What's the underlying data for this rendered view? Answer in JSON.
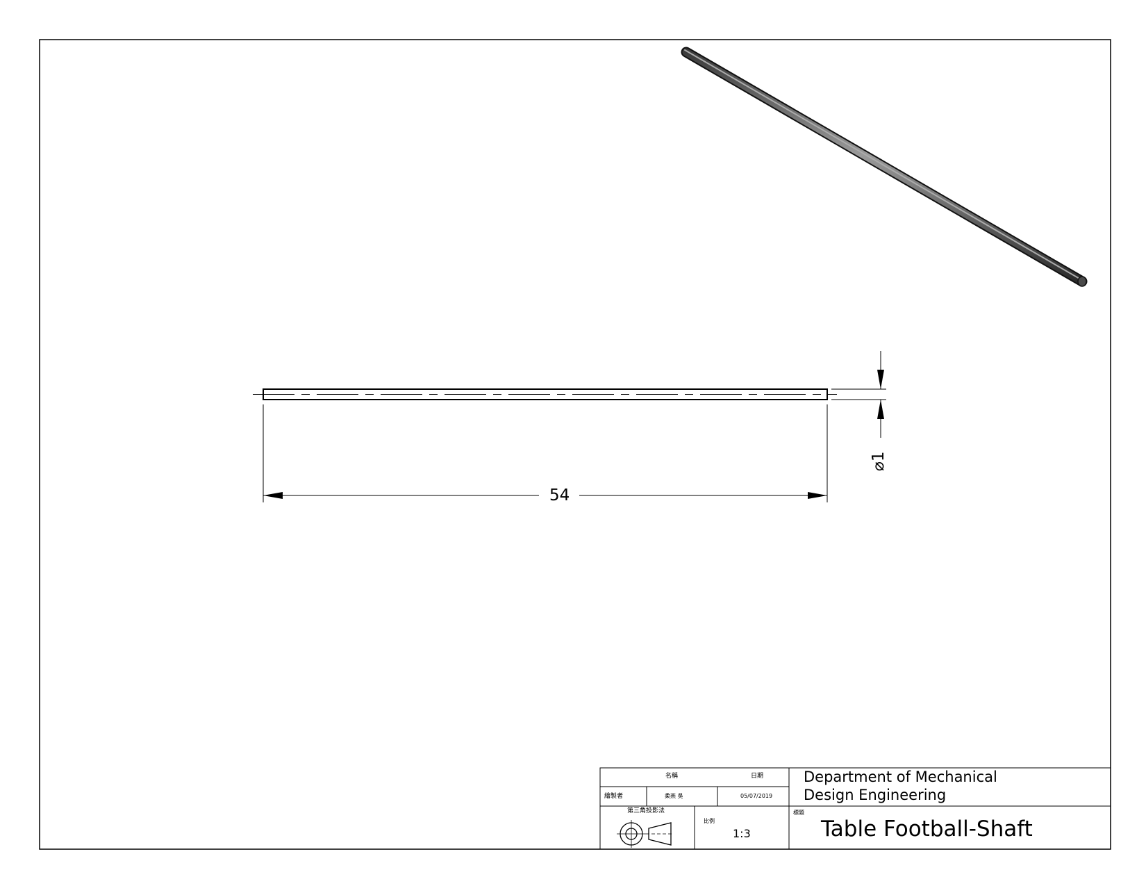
{
  "drawing": {
    "length_dimension": "54",
    "diameter_dimension": "⌀1"
  },
  "title_block": {
    "header_name": "名稱",
    "header_date": "日期",
    "drawn_by_label": "繪製者",
    "drawn_by_name": "柔燕 吳",
    "drawn_date": "05/07/2019",
    "projection_label": "第三角投影法",
    "scale_label": "比例",
    "scale_value": "1:3",
    "department_line1": "Department of Mechanical",
    "department_line2": "Design Engineering",
    "title_label": "標題",
    "title": "Table Football-Shaft"
  },
  "icons": {
    "projection_symbol": "third-angle-projection-icon"
  },
  "colors": {
    "line": "#000000",
    "rod_shade": "#555555",
    "rod_highlight": "#9a9a9a"
  }
}
